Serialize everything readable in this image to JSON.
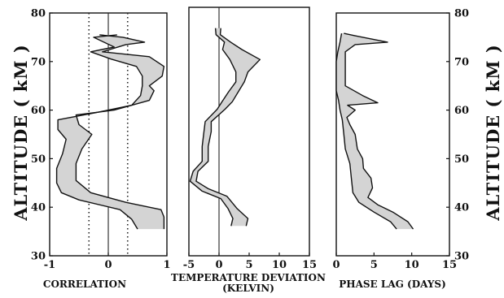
{
  "chart_data": [
    {
      "type": "area",
      "panel": "correlation",
      "xlabel": "CORRELATION",
      "ylabel": "ALTITUDE ( kM )",
      "xlim": [
        -1,
        1
      ],
      "ylim": [
        30,
        80
      ],
      "xticks": [
        "-1",
        "0",
        "1"
      ],
      "xtick_values": [
        -1,
        0,
        1
      ],
      "yticks": [
        "30",
        "40",
        "50",
        "60",
        "70",
        "80"
      ],
      "reference_lines": [
        {
          "x": 0,
          "style": "solid"
        },
        {
          "x": -0.33,
          "style": "dotted"
        },
        {
          "x": 0.33,
          "style": "dotted"
        }
      ],
      "band_lower": [
        [
          0.5,
          35.5
        ],
        [
          0.4,
          37.5
        ],
        [
          0.2,
          39.5
        ],
        [
          -0.5,
          41.5
        ],
        [
          -0.8,
          43
        ],
        [
          -0.88,
          45
        ],
        [
          -0.88,
          48
        ],
        [
          -0.78,
          51
        ],
        [
          -0.72,
          54
        ],
        [
          -0.86,
          56
        ],
        [
          -0.86,
          58
        ],
        [
          -0.2,
          59.5
        ],
        [
          0.4,
          61
        ],
        [
          0.55,
          63
        ],
        [
          0.58,
          65
        ],
        [
          0.58,
          67
        ],
        [
          0.48,
          69
        ],
        [
          0.05,
          70.5
        ],
        [
          -0.3,
          72
        ],
        [
          0.1,
          73
        ],
        [
          -0.25,
          75
        ],
        [
          0.15,
          75.5
        ]
      ],
      "band_upper": [
        [
          0.95,
          35.5
        ],
        [
          0.95,
          38
        ],
        [
          0.9,
          39.5
        ],
        [
          0.3,
          41
        ],
        [
          -0.3,
          43
        ],
        [
          -0.55,
          45.5
        ],
        [
          -0.55,
          49
        ],
        [
          -0.45,
          52
        ],
        [
          -0.28,
          55
        ],
        [
          -0.5,
          57
        ],
        [
          -0.55,
          59
        ],
        [
          0.1,
          60
        ],
        [
          0.7,
          62
        ],
        [
          0.78,
          64
        ],
        [
          0.7,
          65
        ],
        [
          0.92,
          67
        ],
        [
          0.95,
          69
        ],
        [
          0.7,
          71
        ],
        [
          -0.1,
          72
        ],
        [
          0.3,
          73.5
        ],
        [
          0.62,
          74
        ],
        [
          0.25,
          75
        ],
        [
          -0.15,
          75.5
        ]
      ]
    },
    {
      "type": "area",
      "panel": "temperature",
      "xlabel": "TEMPERATURE DEVIATION",
      "xlabel2": "(KELVIN)",
      "xlim": [
        -5,
        15
      ],
      "ylim": [
        30,
        80
      ],
      "xticks": [
        "-5",
        "0",
        "5",
        "10",
        "15"
      ],
      "xtick_values": [
        -5,
        0,
        5,
        10,
        15
      ],
      "reference_lines": [
        {
          "x": 0,
          "style": "solid"
        }
      ],
      "band_lower": [
        [
          2.0,
          36
        ],
        [
          2.3,
          37.5
        ],
        [
          1.5,
          39.5
        ],
        [
          0.3,
          41.5
        ],
        [
          -2.8,
          43
        ],
        [
          -4.8,
          45
        ],
        [
          -4.3,
          47
        ],
        [
          -2.8,
          49
        ],
        [
          -2.8,
          52
        ],
        [
          -2.5,
          55
        ],
        [
          -2.3,
          57
        ],
        [
          -0.3,
          59.5
        ],
        [
          0.5,
          61
        ],
        [
          1.6,
          63
        ],
        [
          2.8,
          65
        ],
        [
          2.8,
          67
        ],
        [
          1.8,
          69.5
        ],
        [
          0.6,
          71.5
        ],
        [
          0.9,
          73
        ],
        [
          -0.5,
          74.5
        ],
        [
          -0.6,
          75.8
        ]
      ],
      "band_upper": [
        [
          4.5,
          36
        ],
        [
          4.8,
          37.5
        ],
        [
          3.0,
          39.5
        ],
        [
          1.3,
          42
        ],
        [
          -1.8,
          43.5
        ],
        [
          -3.8,
          45
        ],
        [
          -3.5,
          47
        ],
        [
          -1.8,
          49
        ],
        [
          -1.8,
          52
        ],
        [
          -1.3,
          55
        ],
        [
          -1.3,
          57
        ],
        [
          1.0,
          59.5
        ],
        [
          2.2,
          61
        ],
        [
          3.2,
          63
        ],
        [
          4.2,
          65
        ],
        [
          4.8,
          67
        ],
        [
          6.8,
          69.5
        ],
        [
          3.8,
          71.5
        ],
        [
          1.9,
          73
        ],
        [
          0.2,
          74.5
        ],
        [
          0.3,
          75.8
        ]
      ]
    },
    {
      "type": "area",
      "panel": "phase",
      "xlabel": "PHASE LAG (DAYS)",
      "ylabel": "ALTITUDE ( kM )",
      "xlim": [
        0,
        15
      ],
      "ylim": [
        30,
        80
      ],
      "xticks": [
        "0",
        "5",
        "10",
        "15"
      ],
      "xtick_values": [
        0,
        5,
        10,
        15
      ],
      "yticks": [
        "30",
        "40",
        "50",
        "60",
        "70",
        "80"
      ],
      "band_lower": [
        [
          8.0,
          35.5
        ],
        [
          7.2,
          37
        ],
        [
          5.0,
          39
        ],
        [
          3.0,
          41
        ],
        [
          2.2,
          43
        ],
        [
          2.0,
          46
        ],
        [
          1.8,
          49
        ],
        [
          1.2,
          52
        ],
        [
          1.0,
          55
        ],
        [
          0.8,
          58
        ],
        [
          0.5,
          60
        ],
        [
          0.3,
          62
        ],
        [
          0.0,
          64
        ],
        [
          0.0,
          70
        ],
        [
          0.2,
          72
        ],
        [
          0.5,
          74
        ],
        [
          0.7,
          75.8
        ]
      ],
      "band_upper": [
        [
          10.2,
          35.5
        ],
        [
          9.5,
          37
        ],
        [
          7.5,
          39
        ],
        [
          5.5,
          40.5
        ],
        [
          4.2,
          42
        ],
        [
          4.8,
          44
        ],
        [
          4.6,
          46
        ],
        [
          3.6,
          48
        ],
        [
          3.5,
          50
        ],
        [
          2.8,
          52
        ],
        [
          2.5,
          55
        ],
        [
          1.8,
          57
        ],
        [
          1.4,
          58.5
        ],
        [
          2.5,
          60
        ],
        [
          1.5,
          61
        ],
        [
          5.5,
          61.5
        ],
        [
          3.5,
          63
        ],
        [
          1.2,
          65
        ],
        [
          1.2,
          72
        ],
        [
          2.5,
          73.5
        ],
        [
          6.8,
          74
        ],
        [
          2.5,
          75.3
        ],
        [
          1.0,
          75.8
        ]
      ]
    }
  ]
}
